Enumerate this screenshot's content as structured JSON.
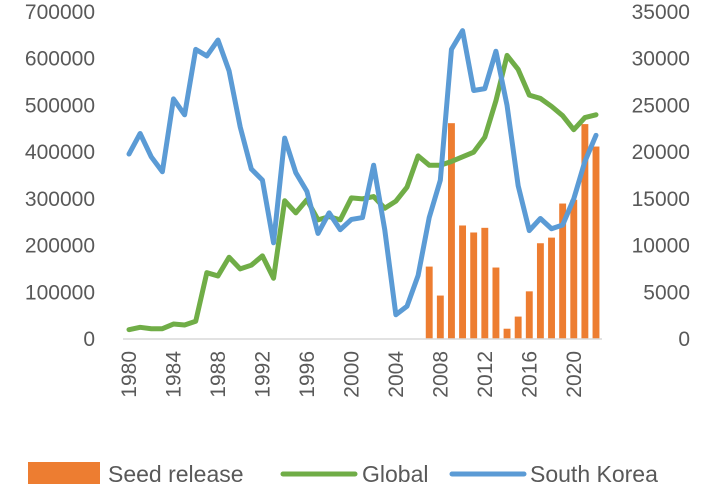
{
  "chart_data": {
    "type": "combo",
    "x": [
      1980,
      1981,
      1982,
      1983,
      1984,
      1985,
      1986,
      1987,
      1988,
      1989,
      1990,
      1991,
      1992,
      1993,
      1994,
      1995,
      1996,
      1997,
      1998,
      1999,
      2000,
      2001,
      2002,
      2003,
      2004,
      2005,
      2006,
      2007,
      2008,
      2009,
      2010,
      2011,
      2012,
      2013,
      2014,
      2015,
      2016,
      2017,
      2018,
      2019,
      2020,
      2021,
      2022
    ],
    "x_ticks": [
      "1980",
      "1984",
      "1988",
      "1992",
      "1996",
      "2000",
      "2004",
      "2008",
      "2012",
      "2016",
      "2020"
    ],
    "y_left": {
      "min": 0,
      "max": 700000,
      "ticks": [
        "0",
        "100000",
        "200000",
        "300000",
        "400000",
        "500000",
        "600000",
        "700000"
      ]
    },
    "y_right": {
      "min": 0,
      "max": 35000,
      "ticks": [
        "0",
        "5000",
        "10000",
        "15000",
        "20000",
        "25000",
        "30000",
        "35000"
      ]
    },
    "grid": false,
    "legend_position": "bottom",
    "series": [
      {
        "name": "Seed release",
        "type": "bar",
        "axis": "left",
        "color": "#ED7D31",
        "values": [
          null,
          null,
          null,
          null,
          null,
          null,
          null,
          null,
          null,
          null,
          null,
          null,
          null,
          null,
          null,
          null,
          null,
          null,
          null,
          null,
          null,
          null,
          null,
          null,
          null,
          null,
          null,
          155000,
          93000,
          462000,
          243000,
          228000,
          238000,
          153000,
          22000,
          48000,
          102000,
          205000,
          217000,
          290000,
          298000,
          460000,
          412000
        ]
      },
      {
        "name": "Global",
        "type": "line",
        "axis": "left",
        "color": "#70AD47",
        "values": [
          20000,
          25000,
          22000,
          22000,
          32000,
          30000,
          38000,
          142000,
          135000,
          175000,
          150000,
          158000,
          178000,
          130000,
          296000,
          270000,
          298000,
          255000,
          262000,
          255000,
          302000,
          300000,
          305000,
          280000,
          295000,
          325000,
          392000,
          372000,
          372000,
          380000,
          390000,
          400000,
          432000,
          510000,
          607000,
          577000,
          522000,
          515000,
          498000,
          478000,
          448000,
          474000,
          480000
        ]
      },
      {
        "name": "South Korea",
        "type": "line",
        "axis": "right",
        "color": "#5B9BD5",
        "values": [
          19800,
          22000,
          19500,
          17900,
          25700,
          24000,
          31000,
          30300,
          32000,
          28700,
          22700,
          18200,
          17000,
          10300,
          21500,
          17800,
          15800,
          11300,
          13500,
          11700,
          12800,
          13000,
          18600,
          11700,
          2600,
          3500,
          6800,
          13000,
          17000,
          31000,
          33000,
          26600,
          26800,
          30800,
          25000,
          16400,
          11600,
          12900,
          11800,
          12200,
          15000,
          19000,
          21800
        ]
      }
    ]
  }
}
